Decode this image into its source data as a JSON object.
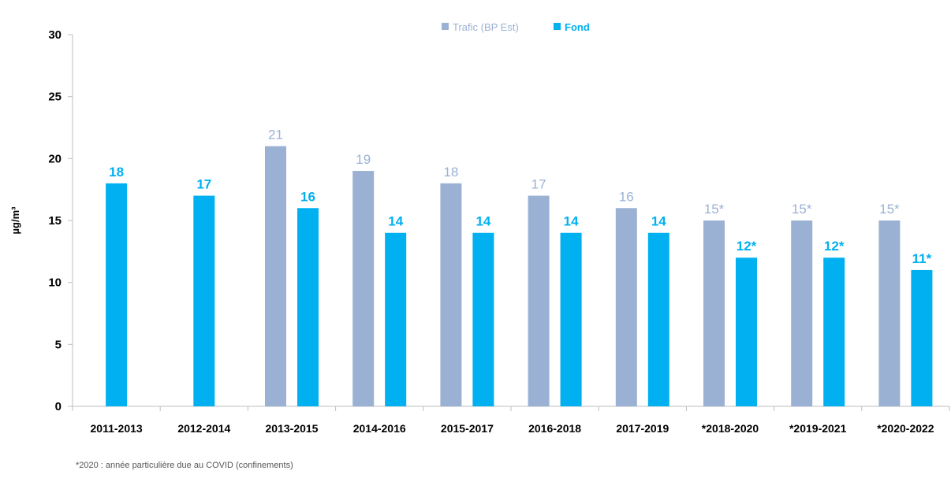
{
  "chart_data": {
    "type": "bar",
    "categories": [
      "2011-2013",
      "2012-2014",
      "2013-2015",
      "2014-2016",
      "2015-2017",
      "2016-2018",
      "2017-2019",
      "*2018-2020",
      "*2019-2021",
      "*2020-2022"
    ],
    "series": [
      {
        "name": "Trafic (BP Est)",
        "color": "#9bb1d4",
        "values": [
          null,
          null,
          21,
          19,
          18,
          17,
          16,
          15,
          15,
          15
        ],
        "labels": [
          "",
          "",
          "21",
          "19",
          "18",
          "17",
          "16",
          "15*",
          "15*",
          "15*"
        ]
      },
      {
        "name": "Fond",
        "color": "#00b0f0",
        "values": [
          18,
          17,
          16,
          14,
          14,
          14,
          14,
          12,
          12,
          11
        ],
        "labels": [
          "18",
          "17",
          "16",
          "14",
          "14",
          "14",
          "14",
          "12*",
          "12*",
          "11*"
        ]
      }
    ],
    "ylabel": "µg/m³",
    "ylim": [
      0,
      30
    ],
    "yticks": [
      "0",
      "5",
      "10",
      "15",
      "20",
      "25",
      "30"
    ],
    "grid": false,
    "legend_position": "top-center",
    "footnote": "*2020 : année particulière due au COVID (confinements)"
  }
}
